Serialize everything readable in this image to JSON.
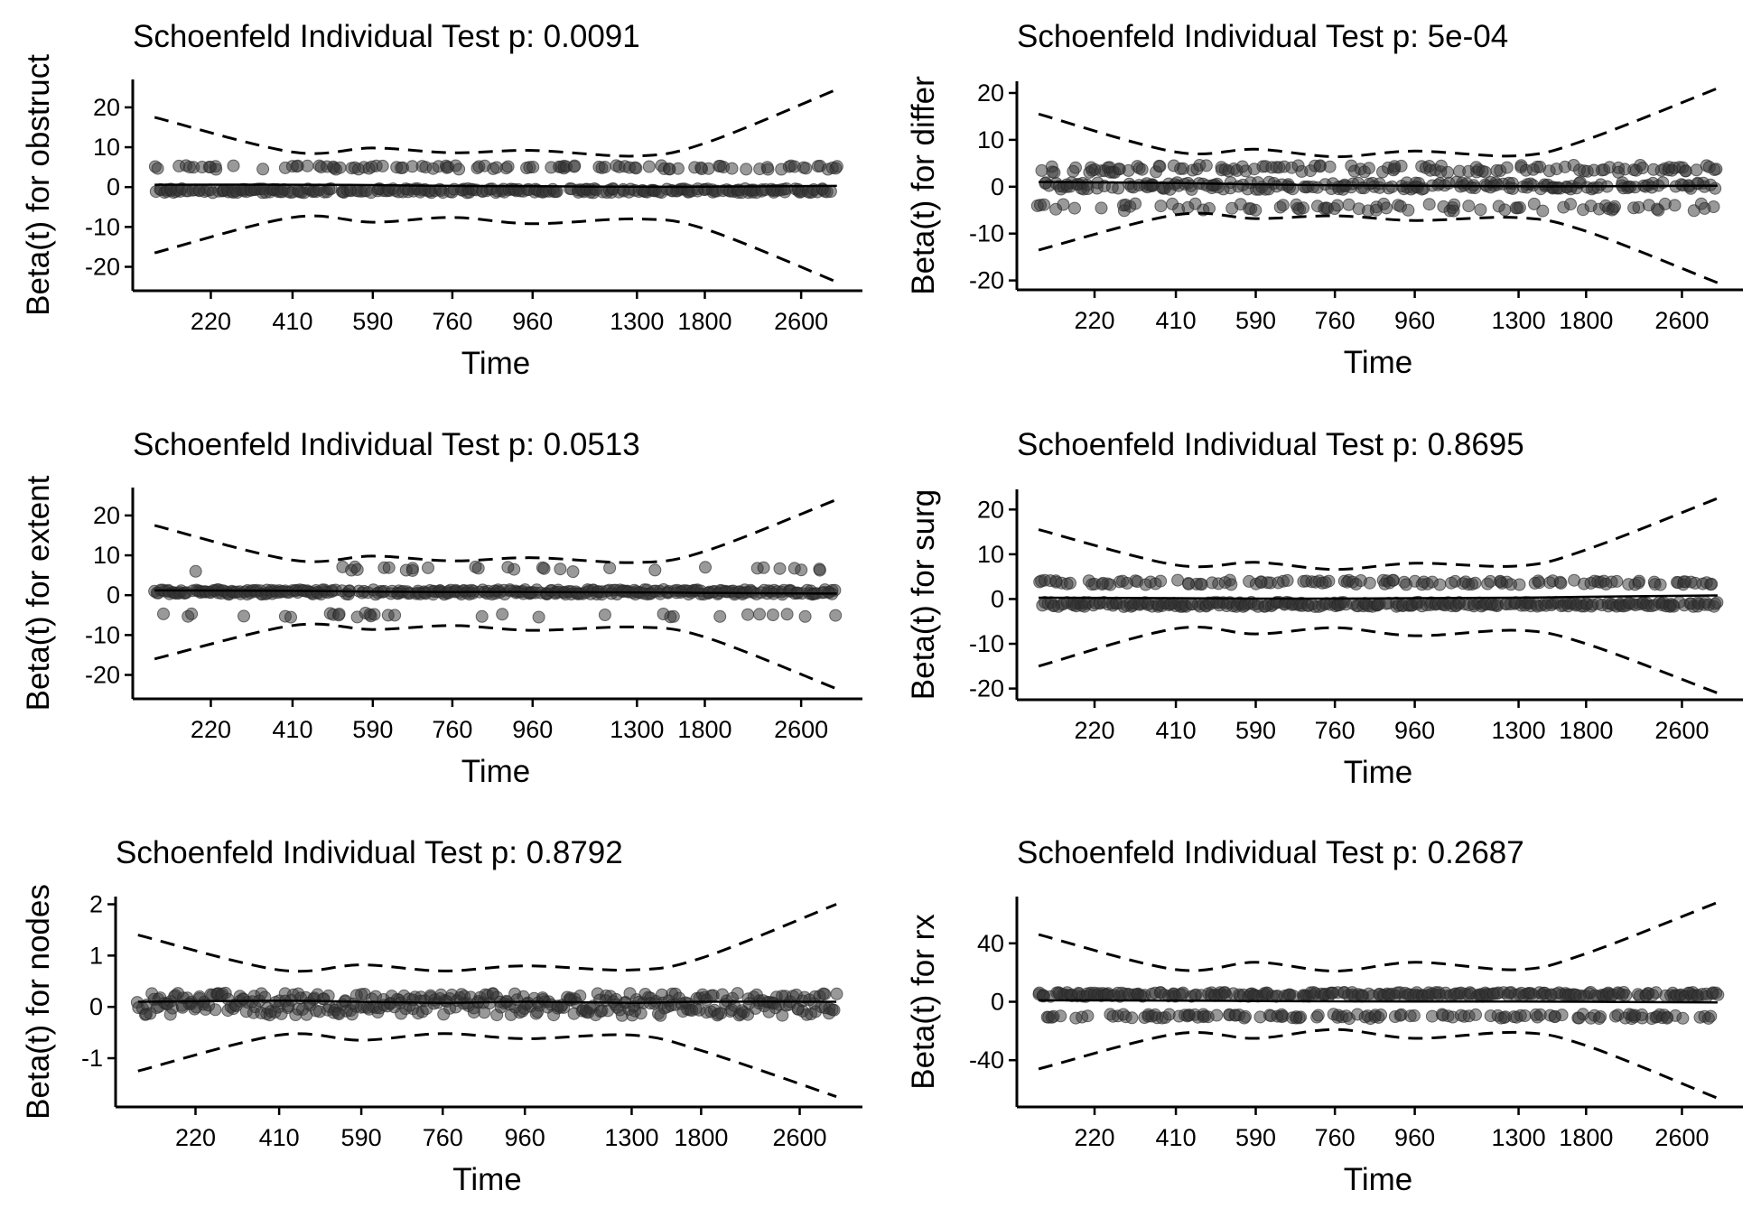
{
  "chart_data": [
    {
      "type": "scatter",
      "title": "Schoenfeld Individual Test p: 0.0091",
      "xlabel": "Time",
      "ylabel": "Beta(t) for obstruct",
      "x_ticks": [
        "220",
        "410",
        "590",
        "760",
        "960",
        "1300",
        "1800",
        "2600"
      ],
      "y_ticks": [
        20,
        10,
        0,
        -10,
        -20
      ],
      "y_tick_labels": [
        "20",
        "10",
        "0",
        "-10",
        "-20"
      ],
      "ylim": [
        -26,
        27
      ],
      "series": [
        {
          "name": "residuals",
          "levels": [
            4.9,
            -0.9
          ],
          "level_weights": [
            0.25,
            0.75
          ],
          "jitter": 0.5,
          "count": 360
        },
        {
          "name": "smooth",
          "values": [
            0.6,
            0.6,
            0.5,
            0.3,
            0.2,
            0.1,
            0.1,
            0.3
          ]
        },
        {
          "name": "ci_upper",
          "values": [
            17.5,
            8.8,
            9.8,
            8.6,
            9.2,
            7.8,
            11,
            24.5
          ]
        },
        {
          "name": "ci_lower",
          "values": [
            -16.5,
            -7.6,
            -8.8,
            -7.6,
            -9.2,
            -8,
            -10.5,
            -23.8
          ]
        }
      ]
    },
    {
      "type": "scatter",
      "title": "Schoenfeld Individual Test p: 5e-04",
      "xlabel": "Time",
      "ylabel": "Beta(t) for differ",
      "x_ticks": [
        "220",
        "410",
        "590",
        "760",
        "960",
        "1300",
        "1800",
        "2600"
      ],
      "y_ticks": [
        20,
        10,
        0,
        -10,
        -20
      ],
      "y_tick_labels": [
        "20",
        "10",
        "0",
        "-10",
        "-20"
      ],
      "ylim": [
        -22,
        22.5
      ],
      "series": [
        {
          "name": "residuals",
          "levels": [
            3.8,
            0.2,
            -4.4
          ],
          "level_weights": [
            0.3,
            0.5,
            0.2
          ],
          "jitter": 0.8,
          "count": 400
        },
        {
          "name": "smooth",
          "values": [
            1,
            0.8,
            0.5,
            0.3,
            0.2,
            0.1,
            0.1,
            0.2
          ]
        },
        {
          "name": "ci_upper",
          "values": [
            15.5,
            7.4,
            8,
            6.4,
            7.6,
            6.6,
            10,
            21
          ]
        },
        {
          "name": "ci_lower",
          "values": [
            -13.5,
            -6,
            -6.8,
            -6.2,
            -7.2,
            -6.6,
            -9.5,
            -20.5
          ]
        }
      ]
    },
    {
      "type": "scatter",
      "title": "Schoenfeld Individual Test p: 0.0513",
      "xlabel": "Time",
      "ylabel": "Beta(t) for extent",
      "x_ticks": [
        "220",
        "410",
        "590",
        "760",
        "960",
        "1300",
        "1800",
        "2600"
      ],
      "y_ticks": [
        20,
        10,
        0,
        -10,
        -20
      ],
      "y_tick_labels": [
        "20",
        "10",
        "0",
        "-10",
        "-20"
      ],
      "ylim": [
        -26,
        27
      ],
      "series": [
        {
          "name": "residuals",
          "levels": [
            0.8,
            6.5,
            -5
          ],
          "level_weights": [
            0.84,
            0.08,
            0.08
          ],
          "jitter": 0.6,
          "count": 380
        },
        {
          "name": "smooth",
          "values": [
            1.2,
            1.1,
            0.9,
            0.8,
            0.8,
            0.7,
            0.6,
            0.4
          ]
        },
        {
          "name": "ci_upper",
          "values": [
            17.5,
            8.8,
            9.8,
            8.6,
            9.4,
            8.2,
            11,
            24
          ]
        },
        {
          "name": "ci_lower",
          "values": [
            -16,
            -7.6,
            -8.6,
            -7.6,
            -8.8,
            -8,
            -10.5,
            -23.5
          ]
        }
      ]
    },
    {
      "type": "scatter",
      "title": "Schoenfeld Individual Test p: 0.8695",
      "xlabel": "Time",
      "ylabel": "Beta(t) for surg",
      "x_ticks": [
        "220",
        "410",
        "590",
        "760",
        "960",
        "1300",
        "1800",
        "2600"
      ],
      "y_ticks": [
        20,
        10,
        0,
        -10,
        -20
      ],
      "y_tick_labels": [
        "20",
        "10",
        "0",
        "-10",
        "-20"
      ],
      "ylim": [
        -22.5,
        24.5
      ],
      "series": [
        {
          "name": "residuals",
          "levels": [
            3.7,
            -1.2
          ],
          "level_weights": [
            0.3,
            0.7
          ],
          "jitter": 0.5,
          "count": 400
        },
        {
          "name": "smooth",
          "values": [
            0.3,
            0.2,
            0.1,
            0.1,
            0.2,
            0.3,
            0.5,
            0.8
          ]
        },
        {
          "name": "ci_upper",
          "values": [
            15.5,
            7.6,
            8.2,
            6.6,
            8,
            7.4,
            11,
            22.5
          ]
        },
        {
          "name": "ci_lower",
          "values": [
            -15,
            -6.6,
            -7.8,
            -6.4,
            -8.2,
            -7,
            -10,
            -21
          ]
        }
      ]
    },
    {
      "type": "scatter",
      "title": "Schoenfeld Individual Test p: 0.8792",
      "xlabel": "Time",
      "ylabel": "Beta(t) for nodes",
      "x_ticks": [
        "220",
        "410",
        "590",
        "760",
        "960",
        "1300",
        "1800",
        "2600"
      ],
      "y_ticks": [
        2,
        1,
        0,
        -1
      ],
      "y_tick_labels": [
        "2",
        "1",
        "0",
        "-1"
      ],
      "ylim": [
        -1.95,
        2.15
      ],
      "series": [
        {
          "name": "residuals",
          "levels": [
            0.05
          ],
          "level_weights": [
            1
          ],
          "jitter": 0.22,
          "count": 360
        },
        {
          "name": "smooth",
          "values": [
            0.1,
            0.12,
            0.1,
            0.08,
            0.1,
            0.08,
            0.1,
            0.1
          ]
        },
        {
          "name": "ci_upper",
          "values": [
            1.4,
            0.72,
            0.82,
            0.7,
            0.8,
            0.72,
            0.95,
            2
          ]
        },
        {
          "name": "ci_lower",
          "values": [
            -1.25,
            -0.55,
            -0.65,
            -0.52,
            -0.62,
            -0.55,
            -0.85,
            -1.75
          ]
        }
      ]
    },
    {
      "type": "scatter",
      "title": "Schoenfeld Individual Test p: 0.2687",
      "xlabel": "Time",
      "ylabel": "Beta(t) for rx",
      "x_ticks": [
        "220",
        "410",
        "590",
        "760",
        "960",
        "1300",
        "1800",
        "2600"
      ],
      "y_ticks": [
        40,
        0,
        -40
      ],
      "y_tick_labels": [
        "40",
        "0",
        "-40"
      ],
      "ylim": [
        -72,
        72
      ],
      "series": [
        {
          "name": "residuals",
          "levels": [
            5,
            -10
          ],
          "level_weights": [
            0.65,
            0.35
          ],
          "jitter": 1.5,
          "count": 400
        },
        {
          "name": "smooth",
          "values": [
            1,
            0.8,
            0.5,
            0.3,
            0.2,
            0.1,
            0,
            -0.5
          ]
        },
        {
          "name": "ci_upper",
          "values": [
            46,
            22,
            27,
            21,
            27,
            22,
            33,
            68
          ]
        },
        {
          "name": "ci_lower",
          "values": [
            -46,
            -22,
            -25,
            -19,
            -25,
            -21,
            -30,
            -66
          ]
        }
      ]
    }
  ]
}
